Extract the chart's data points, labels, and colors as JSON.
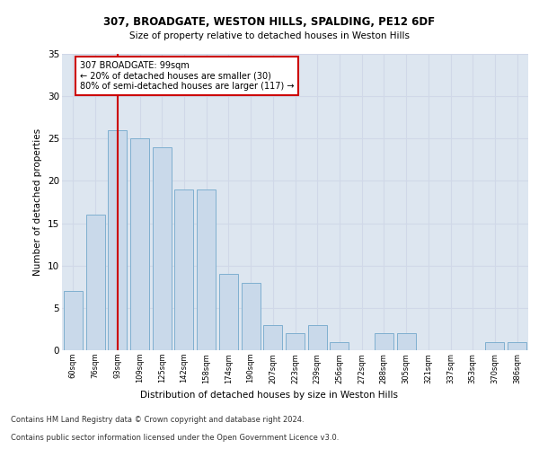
{
  "title1": "307, BROADGATE, WESTON HILLS, SPALDING, PE12 6DF",
  "title2": "Size of property relative to detached houses in Weston Hills",
  "xlabel": "Distribution of detached houses by size in Weston Hills",
  "ylabel": "Number of detached properties",
  "categories": [
    "60sqm",
    "76sqm",
    "93sqm",
    "109sqm",
    "125sqm",
    "142sqm",
    "158sqm",
    "174sqm",
    "190sqm",
    "207sqm",
    "223sqm",
    "239sqm",
    "256sqm",
    "272sqm",
    "288sqm",
    "305sqm",
    "321sqm",
    "337sqm",
    "353sqm",
    "370sqm",
    "386sqm"
  ],
  "values": [
    7,
    16,
    26,
    25,
    24,
    19,
    19,
    9,
    8,
    3,
    2,
    3,
    1,
    0,
    2,
    2,
    0,
    0,
    0,
    1,
    1
  ],
  "bar_color": "#c9d9ea",
  "bar_edge_color": "#7fafd0",
  "marker_label1": "307 BROADGATE: 99sqm",
  "marker_label2": "← 20% of detached houses are smaller (30)",
  "marker_label3": "80% of semi-detached houses are larger (117) →",
  "vline_color": "#cc0000",
  "annotation_box_edge": "#cc0000",
  "grid_color": "#d0d8e8",
  "background_color": "#dde6f0",
  "footer1": "Contains HM Land Registry data © Crown copyright and database right 2024.",
  "footer2": "Contains public sector information licensed under the Open Government Licence v3.0.",
  "ylim": [
    0,
    35
  ],
  "yticks": [
    0,
    5,
    10,
    15,
    20,
    25,
    30,
    35
  ]
}
